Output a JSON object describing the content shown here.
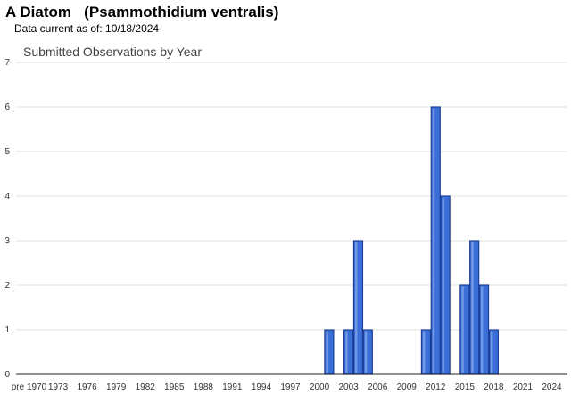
{
  "header": {
    "title": "A Diatom   (Psammothidium ventralis)",
    "data_current": "Data current as of: 10/18/2024"
  },
  "chart_data": {
    "type": "bar",
    "title": "Submitted Observations by Year",
    "xlabel": "",
    "ylabel": "",
    "ylim": [
      0,
      7
    ],
    "yticks": [
      0,
      1,
      2,
      3,
      4,
      5,
      6,
      7
    ],
    "x_tick_labels": [
      "pre 1970",
      "1973",
      "1976",
      "1979",
      "1982",
      "1985",
      "1988",
      "1991",
      "1994",
      "1997",
      "2000",
      "2003",
      "2006",
      "2009",
      "2012",
      "2015",
      "2018",
      "2021",
      "2024"
    ],
    "grid": true,
    "bar_color": "#3a6fd8",
    "bar_edge_color": "#1d3f99",
    "categories": [
      "2001",
      "2003",
      "2004",
      "2005",
      "2011",
      "2012",
      "2013",
      "2015",
      "2016",
      "2017",
      "2018"
    ],
    "values": [
      1,
      1,
      3,
      1,
      1,
      6,
      4,
      2,
      3,
      2,
      1
    ]
  }
}
